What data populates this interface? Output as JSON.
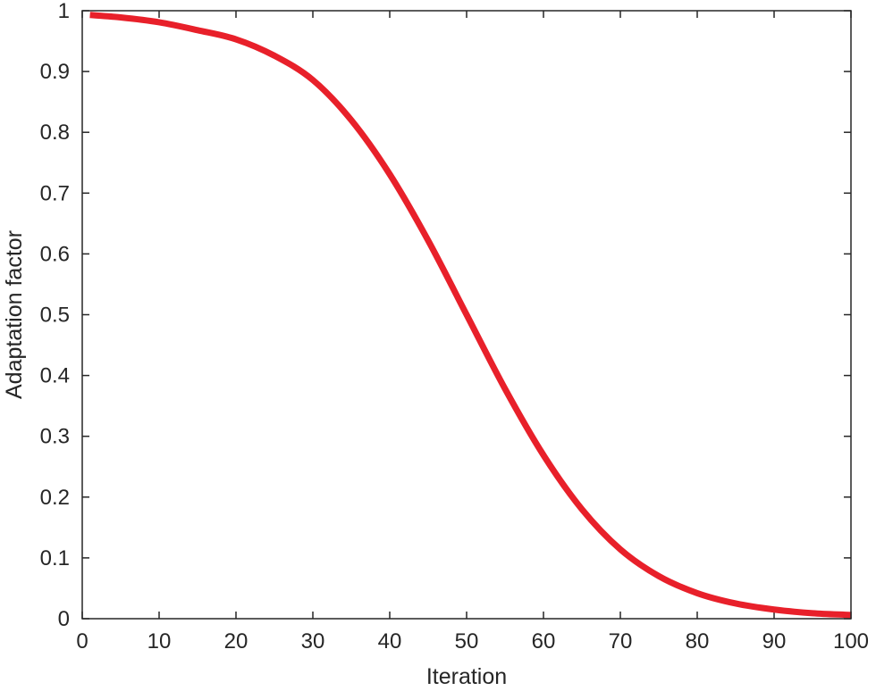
{
  "chart_data": {
    "type": "line",
    "title": "",
    "xlabel": "Iteration",
    "ylabel": "Adaptation factor",
    "xlim": [
      0,
      100
    ],
    "ylim": [
      0,
      1
    ],
    "xticks": [
      0,
      10,
      20,
      30,
      40,
      50,
      60,
      70,
      80,
      90,
      100
    ],
    "yticks": [
      0,
      0.1,
      0.2,
      0.3,
      0.4,
      0.5,
      0.6,
      0.7,
      0.8,
      0.9,
      1
    ],
    "xtick_labels": [
      "0",
      "10",
      "20",
      "30",
      "40",
      "50",
      "60",
      "70",
      "80",
      "90",
      "100"
    ],
    "ytick_labels": [
      "0",
      "0.1",
      "0.2",
      "0.3",
      "0.4",
      "0.5",
      "0.6",
      "0.7",
      "0.8",
      "0.9",
      "1"
    ],
    "grid": false,
    "series": [
      {
        "color": "#e8202a",
        "x": [
          1,
          5,
          10,
          15,
          20,
          25,
          30,
          35,
          40,
          45,
          50,
          55,
          60,
          65,
          70,
          75,
          80,
          85,
          90,
          95,
          100
        ],
        "y": [
          0.993,
          0.989,
          0.981,
          0.968,
          0.953,
          0.926,
          0.886,
          0.82,
          0.731,
          0.622,
          0.5,
          0.378,
          0.269,
          0.18,
          0.114,
          0.07,
          0.042,
          0.025,
          0.015,
          0.009,
          0.006
        ]
      }
    ]
  }
}
